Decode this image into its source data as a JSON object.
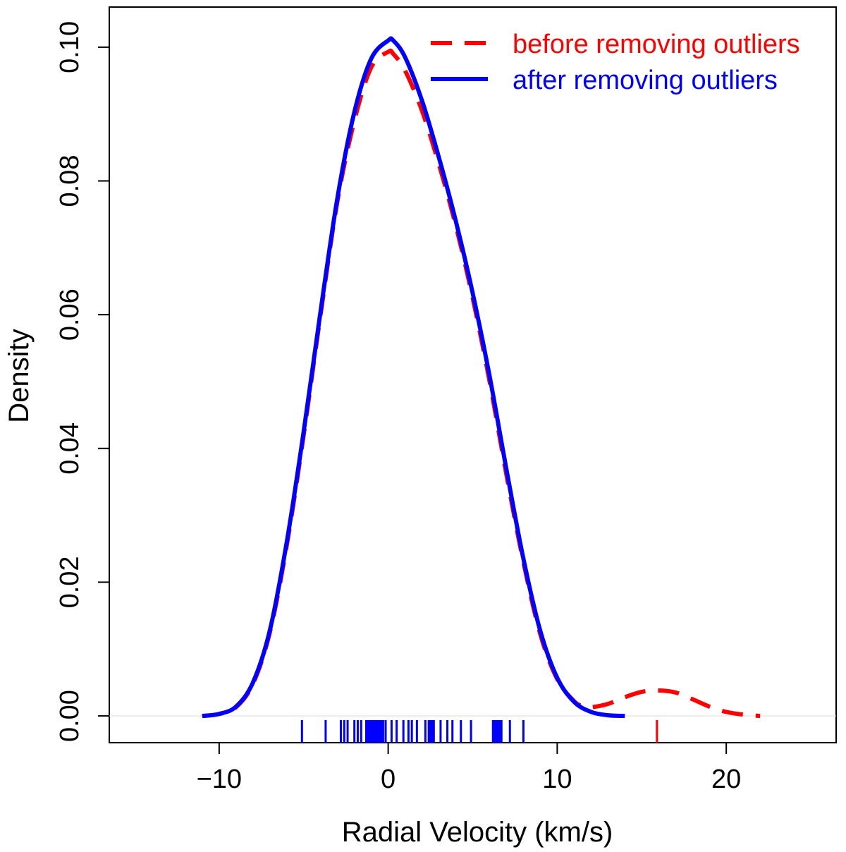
{
  "chart_data": {
    "type": "line",
    "title": "",
    "xlabel": "Radial Velocity (km/s)",
    "ylabel": "Density",
    "xlim": [
      -16.5,
      26.5
    ],
    "ylim": [
      -0.004,
      0.106
    ],
    "x_ticks": [
      -10,
      0,
      10,
      20
    ],
    "x_tick_labels": [
      "−10",
      "0",
      "10",
      "20"
    ],
    "y_ticks": [
      0.0,
      0.02,
      0.04,
      0.06,
      0.08,
      0.1
    ],
    "y_tick_labels": [
      "0.00",
      "0.02",
      "0.04",
      "0.06",
      "0.08",
      "0.10"
    ],
    "legend": {
      "placement": "top-right",
      "entries": [
        {
          "label": "before removing outliers",
          "color": "#ff0000",
          "style": "dashed"
        },
        {
          "label": "after removing outliers",
          "color": "#0000ff",
          "style": "solid"
        }
      ]
    },
    "series": [
      {
        "name": "before removing outliers",
        "color": "#ff0000",
        "style": "dashed",
        "x": [
          -11,
          -10,
          -9,
          -8,
          -7,
          -6,
          -5,
          -4,
          -3,
          -2,
          -1,
          0,
          0.3,
          1,
          2,
          3,
          4,
          5,
          6,
          7,
          8,
          9,
          10,
          11,
          11.5,
          12,
          13,
          14,
          15,
          16,
          17,
          18,
          19,
          20,
          21,
          22
        ],
        "values": [
          0.0,
          0.0003,
          0.0013,
          0.0048,
          0.0125,
          0.0255,
          0.042,
          0.06,
          0.077,
          0.089,
          0.097,
          0.0993,
          0.099,
          0.0965,
          0.0905,
          0.0825,
          0.0733,
          0.0625,
          0.05,
          0.036,
          0.023,
          0.0122,
          0.0055,
          0.0022,
          0.0015,
          0.0013,
          0.0018,
          0.0028,
          0.0036,
          0.0038,
          0.0035,
          0.0025,
          0.0014,
          0.0006,
          0.0002,
          0.0
        ]
      },
      {
        "name": "after removing outliers",
        "color": "#0000ff",
        "style": "solid",
        "x": [
          -11,
          -10,
          -9,
          -8,
          -7,
          -6,
          -5,
          -4,
          -3,
          -2,
          -1,
          0,
          0.3,
          1,
          2,
          3,
          4,
          5,
          6,
          7,
          8,
          9,
          10,
          11,
          12,
          13,
          14
        ],
        "values": [
          0.0,
          0.0003,
          0.0014,
          0.005,
          0.0128,
          0.026,
          0.0425,
          0.0605,
          0.0775,
          0.0903,
          0.0983,
          0.101,
          0.101,
          0.0985,
          0.092,
          0.0835,
          0.074,
          0.0632,
          0.0508,
          0.0368,
          0.0235,
          0.0127,
          0.0057,
          0.0021,
          0.0006,
          0.0001,
          0.0
        ]
      }
    ],
    "rug": [
      {
        "name": "after removing outliers",
        "color": "#0000ff",
        "values": [
          -5.1,
          -3.7,
          -2.8,
          -2.6,
          -2.4,
          -2.0,
          -1.8,
          -1.6,
          -1.3,
          -1.2,
          -1.1,
          -1.0,
          -0.9,
          -0.8,
          -0.7,
          -0.6,
          -0.5,
          -0.4,
          -0.3,
          -0.15,
          0.2,
          0.5,
          0.9,
          1.2,
          1.4,
          1.7,
          2.2,
          2.4,
          2.5,
          2.6,
          2.7,
          3.1,
          3.5,
          3.8,
          4.3,
          4.9,
          6.2,
          6.3,
          6.4,
          6.5,
          6.6,
          6.7,
          7.2,
          8.0
        ]
      },
      {
        "name": "before removing outliers",
        "color": "#ff0000",
        "values": [
          15.9
        ]
      }
    ]
  }
}
